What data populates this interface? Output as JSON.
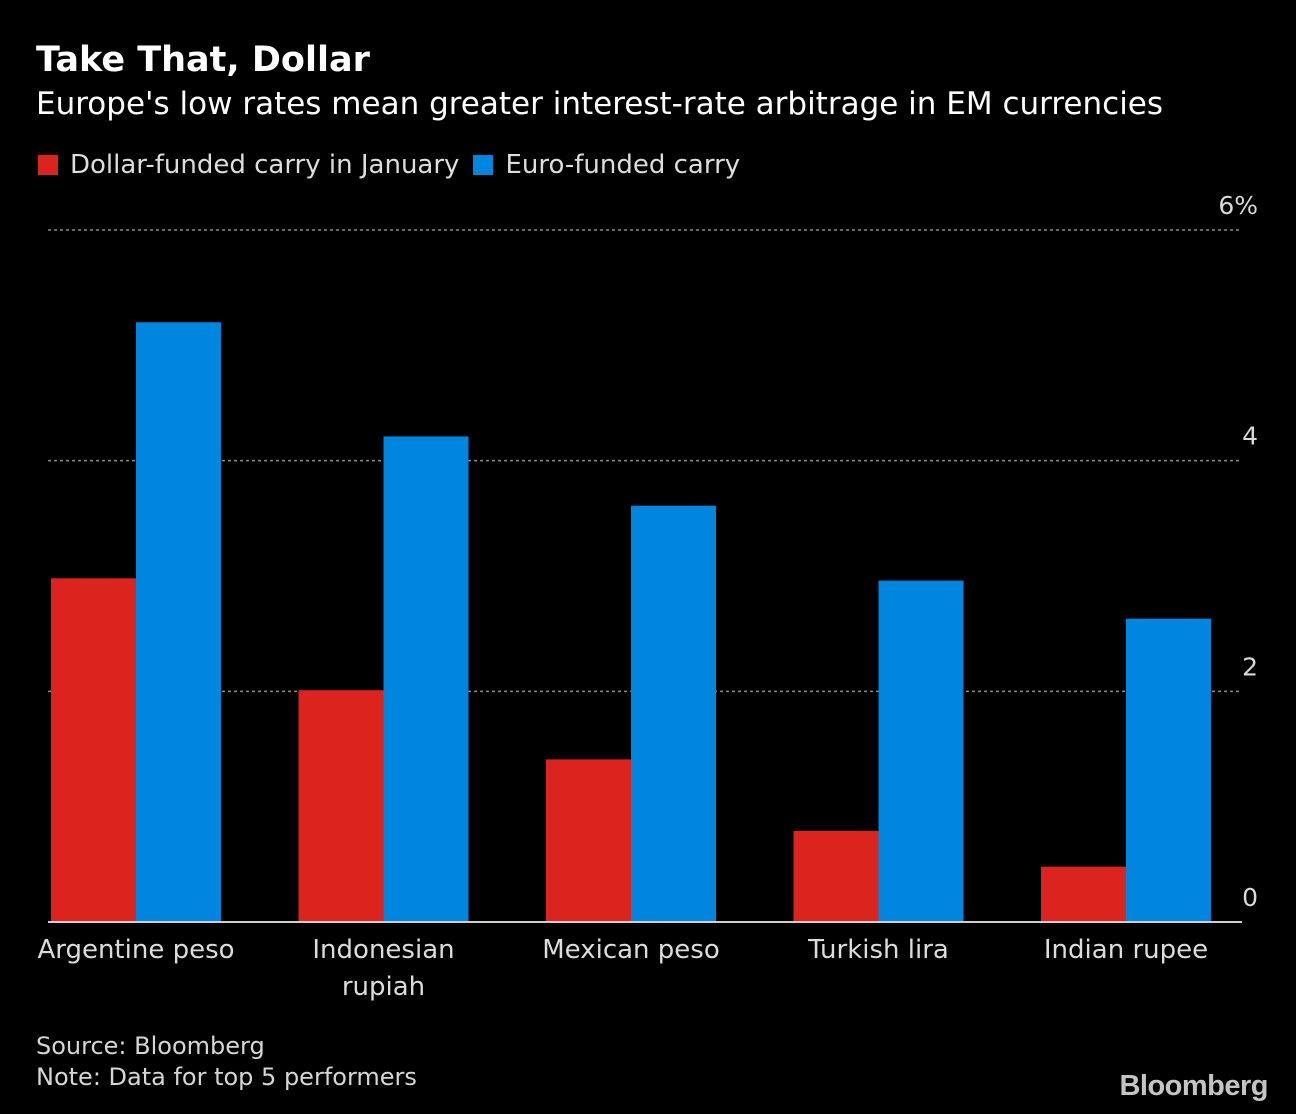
{
  "title": "Take That, Dollar",
  "subtitle": "Europe's low rates mean greater interest-rate arbitrage in EM currencies",
  "footer": {
    "source": "Source: Bloomberg",
    "note": "Note: Data for top 5 performers",
    "brand": "Bloomberg"
  },
  "chart_data": {
    "type": "bar",
    "categories": [
      "Argentine peso",
      "Indonesian rupiah",
      "Mexican peso",
      "Turkish lira",
      "Indian rupee"
    ],
    "category_labels": [
      [
        "Argentine peso"
      ],
      [
        "Indonesian",
        "rupiah"
      ],
      [
        "Mexican peso"
      ],
      [
        "Turkish lira"
      ],
      [
        "Indian rupee"
      ]
    ],
    "series": [
      {
        "name": "Dollar-funded carry in January",
        "color": "#dc241f",
        "values": [
          2.98,
          2.01,
          1.41,
          0.79,
          0.48
        ]
      },
      {
        "name": "Euro-funded carry",
        "color": "#0086de",
        "values": [
          5.2,
          4.21,
          3.61,
          2.96,
          2.63
        ]
      }
    ],
    "ylim": [
      0,
      6
    ],
    "yticks": [
      0,
      2,
      4,
      6
    ],
    "ytick_labels": [
      "0",
      "2",
      "4",
      "6%"
    ],
    "grid": true,
    "legend_position": "top-left",
    "xlabel": "",
    "ylabel": ""
  }
}
